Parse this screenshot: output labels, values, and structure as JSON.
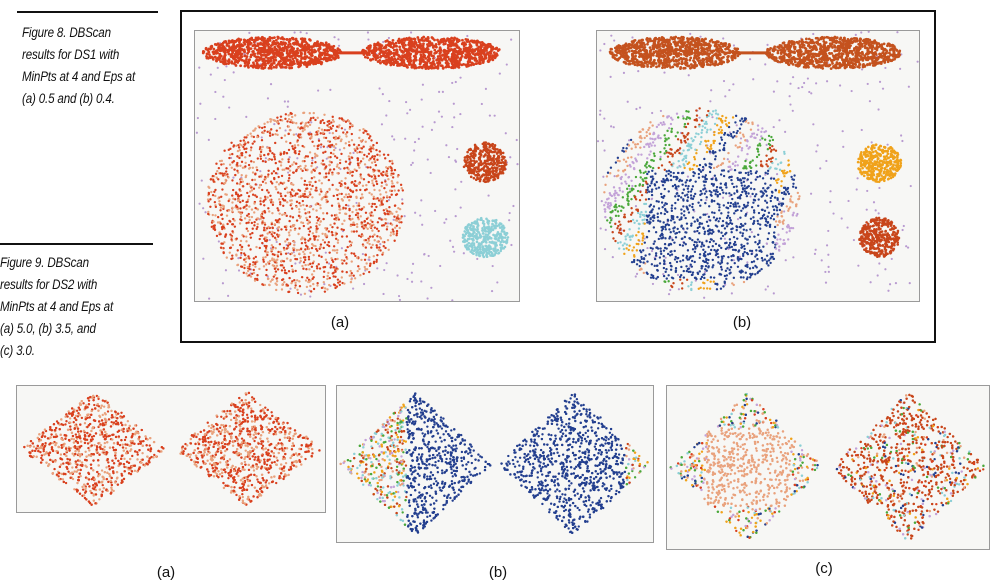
{
  "figure8": {
    "caption_lines": [
      "Figure 8. DBScan",
      "results for DS1 with",
      "MinPts at 4 and Eps at",
      "(a) 0.5 and (b) 0.4."
    ],
    "panels": [
      {
        "label": "(a)"
      },
      {
        "label": "(b)"
      }
    ]
  },
  "figure9": {
    "caption_lines": [
      "Figure 9. DBScan",
      "results for DS2 with",
      "MinPts at 4 and Eps at",
      "(a) 5.0, (b) 3.5, and",
      "(c) 3.0."
    ],
    "panels": [
      {
        "label": "(a)"
      },
      {
        "label": "(b)"
      },
      {
        "label": "(c)"
      }
    ]
  },
  "colors": {
    "red": "#d9401e",
    "orange_red": "#c8451a",
    "salmon": "#e9a27d",
    "cyan": "#8ccfd6",
    "dark_orange": "#c4521e",
    "gold": "#f0a21a",
    "navy": "#233f8f",
    "purple_noise": "#b89ad0",
    "green": "#4aa83a",
    "lavender": "#c3a2d8"
  }
}
